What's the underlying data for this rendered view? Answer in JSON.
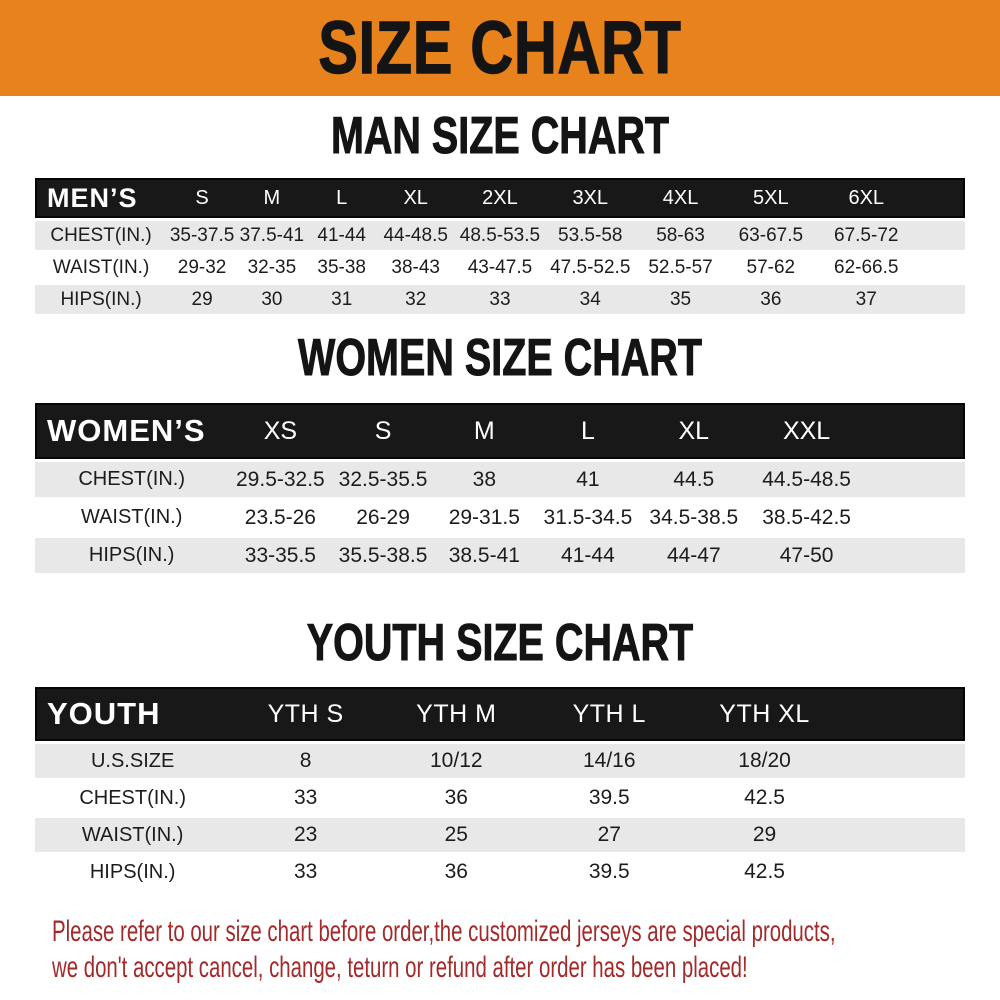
{
  "banner": {
    "title": "SIZE CHART"
  },
  "sections": [
    {
      "heading": "MAN SIZE CHART",
      "header_label": "MEN’S",
      "columns": [
        "S",
        "M",
        "L",
        "XL",
        "2XL",
        "3XL",
        "4XL",
        "5XL",
        "6XL"
      ],
      "rows": [
        {
          "label": "CHEST(IN.)",
          "values": [
            "35-37.5",
            "37.5-41",
            "41-44",
            "44-48.5",
            "48.5-53.5",
            "53.5-58",
            "58-63",
            "63-67.5",
            "67.5-72"
          ]
        },
        {
          "label": "WAIST(IN.)",
          "values": [
            "29-32",
            "32-35",
            "35-38",
            "38-43",
            "43-47.5",
            "47.5-52.5",
            "52.5-57",
            "57-62",
            "62-66.5"
          ]
        },
        {
          "label": "HIPS(IN.)",
          "values": [
            "29",
            "30",
            "31",
            "32",
            "33",
            "34",
            "35",
            "36",
            "37"
          ]
        }
      ]
    },
    {
      "heading": "WOMEN SIZE CHART",
      "header_label": "WOMEN’S",
      "columns": [
        "XS",
        "S",
        "M",
        "L",
        "XL",
        "XXL"
      ],
      "rows": [
        {
          "label": "CHEST(IN.)",
          "values": [
            "29.5-32.5",
            "32.5-35.5",
            "38",
            "41",
            "44.5",
            "44.5-48.5"
          ]
        },
        {
          "label": "WAIST(IN.)",
          "values": [
            "23.5-26",
            "26-29",
            "29-31.5",
            "31.5-34.5",
            "34.5-38.5",
            "38.5-42.5"
          ]
        },
        {
          "label": "HIPS(IN.)",
          "values": [
            "33-35.5",
            "35.5-38.5",
            "38.5-41",
            "41-44",
            "44-47",
            "47-50"
          ]
        }
      ]
    },
    {
      "heading": "YOUTH SIZE CHART",
      "header_label": "YOUTH",
      "columns": [
        "YTH S",
        "YTH M",
        "YTH L",
        "YTH XL"
      ],
      "rows": [
        {
          "label": "U.S.SIZE",
          "values": [
            "8",
            "10/12",
            "14/16",
            "18/20"
          ]
        },
        {
          "label": "CHEST(IN.)",
          "values": [
            "33",
            "36",
            "39.5",
            "42.5"
          ]
        },
        {
          "label": "WAIST(IN.)",
          "values": [
            "23",
            "25",
            "27",
            "29"
          ]
        },
        {
          "label": "HIPS(IN.)",
          "values": [
            "33",
            "36",
            "39.5",
            "42.5"
          ]
        }
      ]
    }
  ],
  "footer": {
    "line1": "Please refer to our size chart before order,the customized jerseys are special products,",
    "line2": "we don't accept cancel, change, teturn or refund after order has been placed!"
  },
  "colors": {
    "banner_bg": "#E8821C",
    "banner_text": "#141414",
    "header_bar_bg": "#181818",
    "header_bar_text": "#FFFFFF",
    "row_alt_bg": "#E8E8E8",
    "row_bg": "#FFFFFF",
    "table_text": "#1C1C1C",
    "footer_text": "#A32A2A"
  }
}
